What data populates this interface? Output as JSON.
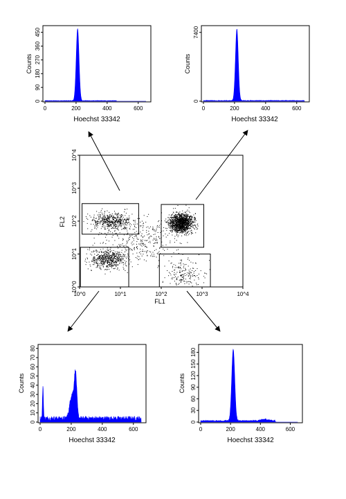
{
  "chart_data": [
    {
      "type": "area",
      "panel": "top-left",
      "xlabel": "Hoechst 33342",
      "ylabel": "Counts",
      "xlim": [
        0,
        650
      ],
      "ylim": [
        0,
        480
      ],
      "x_ticks": [
        "0",
        "200",
        "400",
        "600"
      ],
      "y_ticks": [
        "0",
        "90",
        "180",
        "270",
        "360",
        "450"
      ],
      "series": [
        {
          "peaks": [
            {
              "x": 210,
              "y": 470,
              "sd": 9
            }
          ],
          "baseline": 3,
          "baseline_end": 460
        }
      ]
    },
    {
      "type": "area",
      "panel": "top-right",
      "xlabel": "Hoechst 33342",
      "ylabel": "Counts",
      "xlim": [
        0,
        650
      ],
      "ylim": [
        0,
        7900
      ],
      "x_ticks": [
        "0",
        "200",
        "400",
        "600"
      ],
      "y_ticks": [
        "0",
        "7400"
      ],
      "series": [
        {
          "peaks": [
            {
              "x": 215,
              "y": 7700,
              "sd": 9
            }
          ],
          "baseline": 60,
          "baseline_end": 650
        }
      ]
    },
    {
      "type": "scatter",
      "panel": "center",
      "xlabel": "FL1",
      "ylabel": "FL2",
      "x_scale": "log",
      "y_scale": "log",
      "xlim": [
        1,
        10000
      ],
      "ylim": [
        1,
        10000
      ],
      "x_ticks": [
        "10^0",
        "10^1",
        "10^2",
        "10^3",
        "10^4"
      ],
      "y_ticks": [
        "10^0",
        "10^1",
        "10^2",
        "10^3",
        "10^4"
      ],
      "clusters": [
        {
          "cx": 6,
          "cy": 100,
          "sx": 0.28,
          "sy": 0.12,
          "n": 500
        },
        {
          "cx": 5,
          "cy": 7,
          "sx": 0.22,
          "sy": 0.14,
          "n": 550
        },
        {
          "cx": 300,
          "cy": 90,
          "sx": 0.14,
          "sy": 0.14,
          "n": 1400
        },
        {
          "cx": 400,
          "cy": 2.5,
          "sx": 0.25,
          "sy": 0.22,
          "n": 180
        },
        {
          "cx": 30,
          "cy": 25,
          "sx": 0.45,
          "sy": 0.35,
          "n": 350
        }
      ],
      "gates": [
        {
          "x": [
            1.15,
            28
          ],
          "y": [
            40,
            340
          ]
        },
        {
          "x": [
            1.05,
            16
          ],
          "y": [
            1.0,
            16
          ]
        },
        {
          "x": [
            100,
            1100
          ],
          "y": [
            16,
            320
          ]
        },
        {
          "x": [
            90,
            1600
          ],
          "y": [
            1.0,
            10
          ]
        }
      ]
    },
    {
      "type": "area",
      "panel": "bottom-left",
      "xlabel": "Hoechst 33342",
      "ylabel": "Counts",
      "xlim": [
        0,
        650
      ],
      "ylim": [
        0,
        82
      ],
      "x_ticks": [
        "0",
        "200",
        "400",
        "600"
      ],
      "y_ticks": [
        "0",
        "10",
        "20",
        "30",
        "40",
        "50",
        "60",
        "70",
        "80"
      ],
      "series": [
        {
          "peaks": [
            {
              "x": 18,
              "y": 34,
              "sd": 3
            },
            {
              "x": 205,
              "y": 26,
              "sd": 14
            },
            {
              "x": 228,
              "y": 45,
              "sd": 8
            }
          ],
          "baseline": 4,
          "baseline_end": 650
        }
      ]
    },
    {
      "type": "area",
      "panel": "bottom-right",
      "xlabel": "Hoechst 33342",
      "ylabel": "Counts",
      "xlim": [
        0,
        650
      ],
      "ylim": [
        0,
        195
      ],
      "x_ticks": [
        "0",
        "200",
        "400",
        "600"
      ],
      "y_ticks": [
        "0",
        "30",
        "60",
        "90",
        "120",
        "150",
        "180"
      ],
      "series": [
        {
          "peaks": [
            {
              "x": 218,
              "y": 185,
              "sd": 10
            },
            {
              "x": 430,
              "y": 4,
              "sd": 25
            }
          ],
          "baseline": 3,
          "baseline_end": 500
        }
      ]
    }
  ]
}
